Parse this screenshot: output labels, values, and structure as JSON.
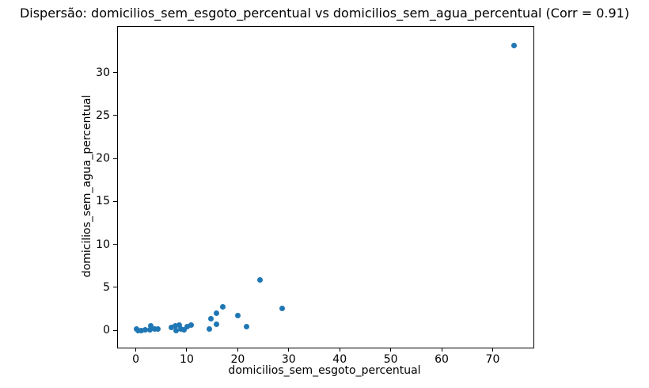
{
  "chart_data": {
    "type": "scatter",
    "title": "Dispersão: domicilios_sem_esgoto_percentual vs domicilios_sem_agua_percentual (Corr = 0.91)",
    "xlabel": "domicilios_sem_esgoto_percentual",
    "ylabel": "domicilios_sem_agua_percentual",
    "correlation": 0.91,
    "xlim": [
      -3.5,
      78.0
    ],
    "ylim": [
      -2.0,
      35.3
    ],
    "xticks": [
      0,
      10,
      20,
      30,
      40,
      50,
      60,
      70
    ],
    "yticks": [
      0,
      5,
      10,
      15,
      20,
      25,
      30
    ],
    "grid": false,
    "legend": null,
    "marker_color": "#1f77b4",
    "background_color": "#ffffff",
    "points": [
      [
        0.1,
        0.15
      ],
      [
        0.4,
        0.0
      ],
      [
        1.1,
        0.0
      ],
      [
        1.9,
        0.05
      ],
      [
        2.8,
        0.1
      ],
      [
        3.0,
        0.5
      ],
      [
        3.7,
        0.2
      ],
      [
        4.3,
        0.15
      ],
      [
        7.0,
        0.35
      ],
      [
        7.7,
        0.5
      ],
      [
        7.9,
        0.0
      ],
      [
        8.5,
        0.6
      ],
      [
        8.9,
        0.15
      ],
      [
        9.4,
        0.05
      ],
      [
        10.1,
        0.45
      ],
      [
        10.8,
        0.6
      ],
      [
        14.5,
        0.2
      ],
      [
        14.8,
        1.4
      ],
      [
        15.8,
        0.75
      ],
      [
        15.9,
        2.05
      ],
      [
        17.0,
        2.75
      ],
      [
        20.0,
        1.7
      ],
      [
        21.8,
        0.4
      ],
      [
        24.4,
        5.9
      ],
      [
        28.7,
        2.55
      ],
      [
        74.2,
        33.1
      ]
    ]
  }
}
